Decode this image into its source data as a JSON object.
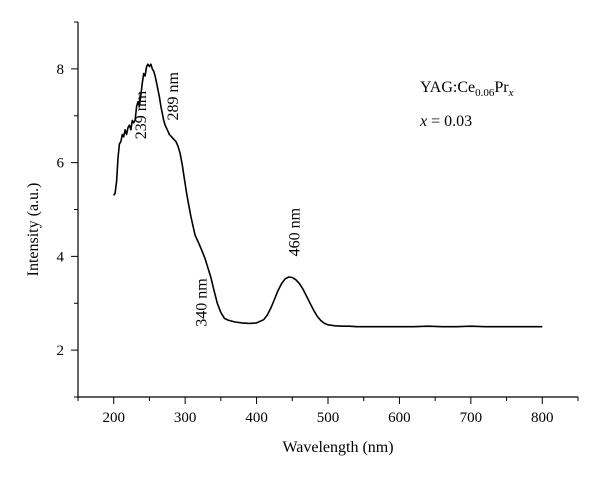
{
  "chart_data": {
    "type": "line",
    "xlabel": "Wavelength (nm)",
    "ylabel": "Intensity (a.u.)",
    "xlim": [
      150,
      850
    ],
    "ylim": [
      1,
      9
    ],
    "x_ticks": [
      200,
      300,
      400,
      500,
      600,
      700,
      800
    ],
    "y_ticks": [
      2,
      4,
      6,
      8
    ],
    "grid": false,
    "legend": {
      "prefix": "YAG:Ce",
      "sub1": "0.06",
      "mid": "Pr",
      "sub2": "x",
      "line2_var": "x",
      "line2_rest": " = 0.03"
    },
    "annotations": [
      {
        "text": "239 nm",
        "x": 245,
        "y": 6.5
      },
      {
        "text": "289 nm",
        "x": 290,
        "y": 6.9
      },
      {
        "text": "340 nm",
        "x": 330,
        "y": 2.5
      },
      {
        "text": "460 nm",
        "x": 460,
        "y": 4.0
      }
    ],
    "series": [
      {
        "x": [
          200,
          202,
          204,
          206,
          208,
          210,
          212,
          214,
          216,
          218,
          220,
          222,
          224,
          226,
          228,
          230,
          232,
          234,
          236,
          238,
          240,
          242,
          244,
          246,
          248,
          250,
          252,
          254,
          256,
          258,
          260,
          262,
          264,
          266,
          268,
          270,
          272,
          275,
          278,
          281,
          284,
          287,
          290,
          293,
          296,
          299,
          302,
          305,
          308,
          311,
          314,
          317,
          320,
          324,
          328,
          332,
          336,
          340,
          345,
          350,
          355,
          360,
          365,
          370,
          380,
          390,
          400,
          410,
          415,
          420,
          425,
          430,
          435,
          440,
          445,
          450,
          455,
          460,
          465,
          470,
          475,
          480,
          485,
          490,
          495,
          500,
          505,
          510,
          520,
          530,
          540,
          560,
          580,
          600,
          620,
          640,
          660,
          680,
          700,
          720,
          740,
          760,
          780,
          800
        ],
        "y": [
          5.3,
          5.35,
          5.6,
          6.1,
          6.4,
          6.45,
          6.6,
          6.55,
          6.7,
          6.6,
          6.75,
          6.8,
          6.7,
          6.9,
          6.85,
          6.9,
          7.2,
          7.3,
          7.2,
          7.45,
          7.7,
          7.9,
          7.85,
          8.05,
          8.1,
          8.05,
          8.1,
          8.0,
          7.95,
          7.85,
          7.7,
          7.55,
          7.4,
          7.2,
          7.05,
          6.9,
          6.8,
          6.7,
          6.6,
          6.55,
          6.5,
          6.45,
          6.35,
          6.2,
          5.95,
          5.65,
          5.35,
          5.1,
          4.85,
          4.65,
          4.45,
          4.35,
          4.25,
          4.1,
          3.95,
          3.75,
          3.55,
          3.3,
          3.0,
          2.8,
          2.68,
          2.64,
          2.62,
          2.6,
          2.58,
          2.57,
          2.58,
          2.65,
          2.75,
          2.9,
          3.08,
          3.27,
          3.42,
          3.52,
          3.56,
          3.55,
          3.5,
          3.42,
          3.3,
          3.15,
          3.0,
          2.85,
          2.72,
          2.63,
          2.57,
          2.54,
          2.53,
          2.52,
          2.51,
          2.51,
          2.5,
          2.5,
          2.5,
          2.5,
          2.5,
          2.51,
          2.5,
          2.5,
          2.51,
          2.5,
          2.5,
          2.5,
          2.5,
          2.5
        ]
      }
    ]
  }
}
